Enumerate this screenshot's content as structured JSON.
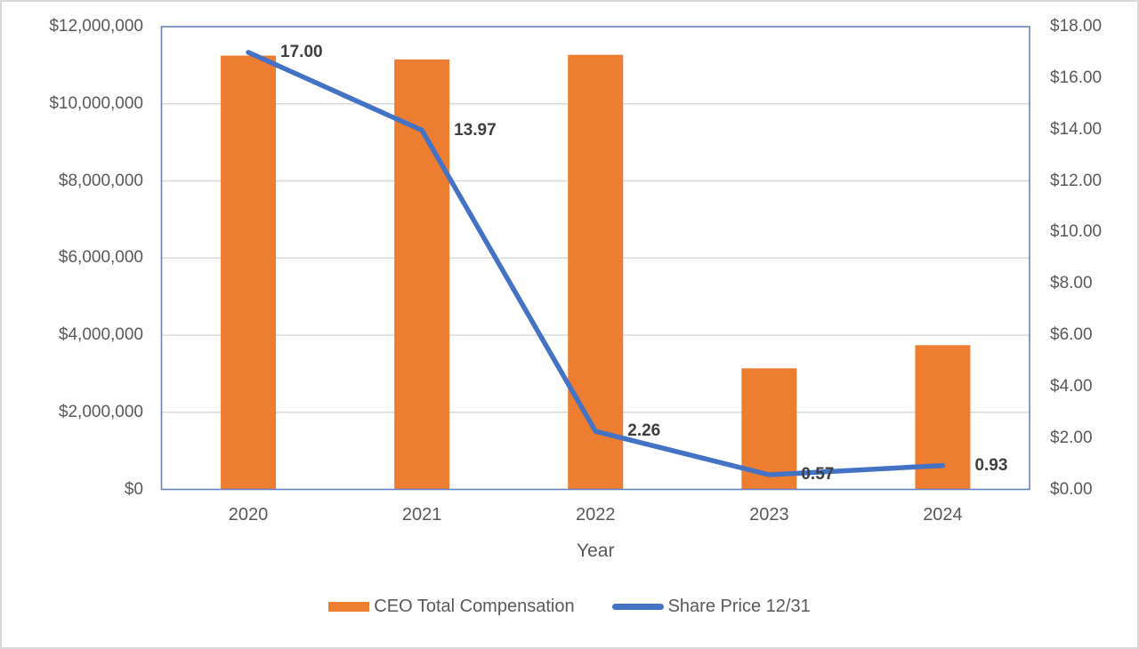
{
  "chart_data": {
    "type": "combo-bar-line",
    "categories": [
      "2020",
      "2021",
      "2022",
      "2023",
      "2024"
    ],
    "series": [
      {
        "name": "CEO Total Compensation",
        "chart_type": "bar",
        "axis": "left",
        "color": "#ED7D31",
        "values": [
          11250000,
          11150000,
          11270000,
          3140000,
          3740000
        ]
      },
      {
        "name": "Share Price 12/31",
        "chart_type": "line",
        "axis": "right",
        "color": "#4472C4",
        "values": [
          17.0,
          13.97,
          2.26,
          0.57,
          0.93
        ],
        "point_labels": [
          "17.00",
          "13.97",
          "2.26",
          "0.57",
          "0.93"
        ]
      }
    ],
    "title": "",
    "xlabel": "Year",
    "axes": {
      "left": {
        "min": 0,
        "max": 12000000,
        "step": 2000000,
        "tick_labels": [
          "$0",
          "$2,000,000",
          "$4,000,000",
          "$6,000,000",
          "$8,000,000",
          "$10,000,000",
          "$12,000,000"
        ]
      },
      "right": {
        "min": 0,
        "max": 18,
        "step": 2,
        "tick_labels": [
          "$0.00",
          "$2.00",
          "$4.00",
          "$6.00",
          "$8.00",
          "$10.00",
          "$12.00",
          "$14.00",
          "$16.00",
          "$18.00"
        ]
      }
    },
    "grid": true,
    "legend_position": "bottom",
    "colors": {
      "bar": "#ED7D31",
      "line": "#4472C4",
      "gridline": "#D9D9D9",
      "plot_border": "#6384C6",
      "tick_text": "#595959",
      "data_label_text": "#3F3F3F",
      "outer_border": "#D9D9D9"
    }
  }
}
